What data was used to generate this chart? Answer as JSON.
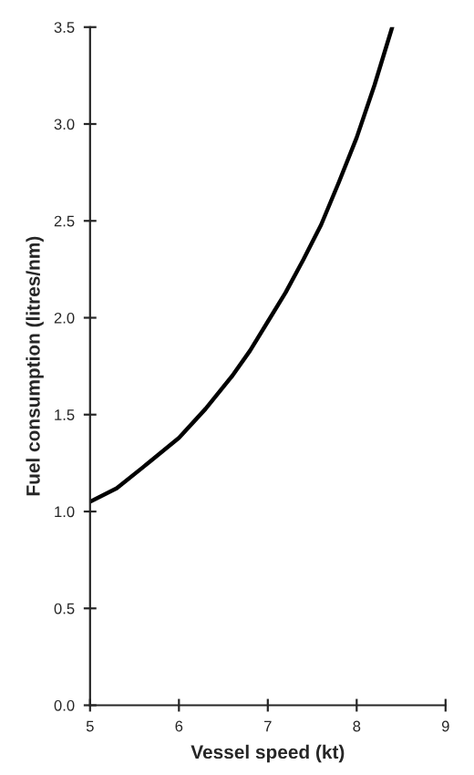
{
  "chart_data": {
    "type": "line",
    "xlabel": "Vessel speed (kt)",
    "ylabel": "Fuel consumption (litres/nm)",
    "x": [
      5,
      5.3,
      5.6,
      6,
      6.3,
      6.6,
      6.8,
      7,
      7.2,
      7.4,
      7.6,
      7.8,
      8,
      8.2,
      8.4
    ],
    "values": [
      1.05,
      1.12,
      1.23,
      1.38,
      1.53,
      1.7,
      1.83,
      1.98,
      2.13,
      2.3,
      2.48,
      2.7,
      2.93,
      3.2,
      3.5
    ],
    "color": "#000000",
    "xlim": [
      5,
      9
    ],
    "ylim": [
      0,
      3.5
    ],
    "xticks": [
      5,
      6,
      7,
      8,
      9
    ],
    "yticks": [
      {
        "value": 0,
        "label": "0.0"
      },
      {
        "value": 0.5,
        "label": "0.5"
      },
      {
        "value": 1,
        "label": "1.0"
      },
      {
        "value": 1.5,
        "label": "1.5"
      },
      {
        "value": 2,
        "label": "2.0"
      },
      {
        "value": 2.5,
        "label": "2.5"
      },
      {
        "value": 3,
        "label": "3.0"
      },
      {
        "value": 3.5,
        "label": "3.5"
      }
    ],
    "grid": false,
    "marker": "none",
    "line_style": "solid"
  }
}
